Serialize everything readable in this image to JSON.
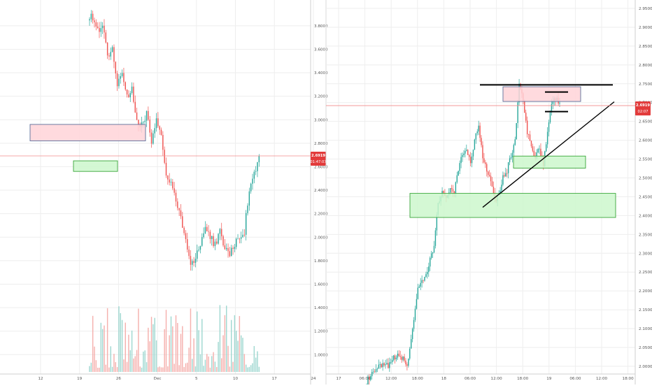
{
  "colors": {
    "up": "#26a69a",
    "down": "#ef5350",
    "volume_up": "#8fd1c9",
    "volume_down": "#f3a3a0",
    "grid": "#eeeeee",
    "axis_text": "#555555",
    "price_line": "#f28b8b",
    "price_tag": "#e23b3b",
    "resistance_fill": "#ffd4d8",
    "resistance_stroke": "#5b6e9a",
    "support_fill": "#cdf7cd",
    "support_stroke": "#3aa63a",
    "trendline": "#000000"
  },
  "chart_data": [
    {
      "type": "candlestick",
      "panel": "left",
      "title": "",
      "xlabel": "",
      "ylabel": "",
      "ylim": [
        0.96,
        3.93
      ],
      "y_ticks": [
        "1.0000",
        "1.2000",
        "1.4000",
        "1.6000",
        "1.8000",
        "2.0000",
        "2.2000",
        "2.4000",
        "2.6000",
        "2.8000",
        "3.0000",
        "3.2000",
        "3.4000",
        "3.6000",
        "3.8000"
      ],
      "x_ticks": [
        "12",
        "19",
        "26",
        "Dec",
        "5",
        "10",
        "17",
        "24"
      ],
      "grid": true,
      "volume_panel": true,
      "last_price": "2.6919",
      "countdown": "01:47:07",
      "anchors": [
        [
          0,
          3.89
        ],
        [
          3,
          3.85
        ],
        [
          6,
          3.72
        ],
        [
          8,
          3.82
        ],
        [
          11,
          3.55
        ],
        [
          14,
          3.62
        ],
        [
          17,
          3.3
        ],
        [
          20,
          3.42
        ],
        [
          23,
          3.18
        ],
        [
          26,
          3.25
        ],
        [
          29,
          3.0
        ],
        [
          32,
          2.95
        ],
        [
          35,
          3.05
        ],
        [
          38,
          2.83
        ],
        [
          41,
          3.0
        ],
        [
          44,
          2.9
        ],
        [
          47,
          2.5
        ],
        [
          50,
          2.45
        ],
        [
          53,
          2.3
        ],
        [
          56,
          2.18
        ],
        [
          59,
          1.95
        ],
        [
          62,
          1.78
        ],
        [
          65,
          1.82
        ],
        [
          68,
          1.95
        ],
        [
          71,
          2.08
        ],
        [
          74,
          2.0
        ],
        [
          77,
          1.93
        ],
        [
          80,
          2.05
        ],
        [
          83,
          1.9
        ],
        [
          86,
          1.85
        ],
        [
          89,
          1.95
        ],
        [
          92,
          2.0
        ],
        [
          95,
          2.05
        ],
        [
          98,
          2.42
        ],
        [
          101,
          2.55
        ],
        [
          104,
          2.69
        ]
      ],
      "zones": [
        {
          "kind": "resistance",
          "x0": 43,
          "x1": 208,
          "y_low": 2.82,
          "y_high": 2.96
        },
        {
          "kind": "support",
          "x0": 105,
          "x1": 168,
          "y_low": 2.56,
          "y_high": 2.65
        }
      ],
      "lines": []
    },
    {
      "type": "candlestick",
      "panel": "right",
      "title": "",
      "xlabel": "",
      "ylabel": "",
      "ylim": [
        1.985,
        2.963
      ],
      "y_ticks": [
        "2.0000",
        "2.0500",
        "2.1000",
        "2.1500",
        "2.2000",
        "2.2500",
        "2.3000",
        "2.3500",
        "2.4000",
        "2.4500",
        "2.5000",
        "2.5500",
        "2.6000",
        "2.6500",
        "2.7000",
        "2.7500",
        "2.8000",
        "2.8500",
        "2.9000",
        "2.9500"
      ],
      "x_ticks": [
        "17",
        "06:00",
        "12:00",
        "18:00",
        "18",
        "06:00",
        "12:00",
        "18:00",
        "19",
        "06:00",
        "12:00",
        "18:00"
      ],
      "grid": true,
      "volume_panel": false,
      "last_price": "2.6919",
      "countdown": "02:07",
      "anchors": [
        [
          0,
          1.96
        ],
        [
          5,
          1.98
        ],
        [
          10,
          2.0
        ],
        [
          15,
          2.0
        ],
        [
          20,
          2.02
        ],
        [
          25,
          2.03
        ],
        [
          30,
          2.0
        ],
        [
          34,
          2.1
        ],
        [
          38,
          2.2
        ],
        [
          41,
          2.22
        ],
        [
          44,
          2.24
        ],
        [
          47,
          2.28
        ],
        [
          50,
          2.32
        ],
        [
          53,
          2.44
        ],
        [
          56,
          2.46
        ],
        [
          59,
          2.44
        ],
        [
          62,
          2.48
        ],
        [
          65,
          2.46
        ],
        [
          68,
          2.52
        ],
        [
          71,
          2.56
        ],
        [
          74,
          2.58
        ],
        [
          77,
          2.54
        ],
        [
          80,
          2.6
        ],
        [
          83,
          2.64
        ],
        [
          86,
          2.56
        ],
        [
          89,
          2.52
        ],
        [
          92,
          2.5
        ],
        [
          95,
          2.44
        ],
        [
          98,
          2.46
        ],
        [
          101,
          2.5
        ],
        [
          104,
          2.52
        ],
        [
          107,
          2.56
        ],
        [
          110,
          2.6
        ],
        [
          113,
          2.75
        ],
        [
          116,
          2.7
        ],
        [
          119,
          2.62
        ],
        [
          122,
          2.58
        ],
        [
          125,
          2.56
        ],
        [
          128,
          2.58
        ],
        [
          131,
          2.54
        ],
        [
          134,
          2.62
        ],
        [
          137,
          2.69
        ],
        [
          140,
          2.71
        ],
        [
          143,
          2.7
        ]
      ],
      "zones": [
        {
          "kind": "resistance",
          "x0": 719,
          "x1": 830,
          "y_low": 2.703,
          "y_high": 2.742
        },
        {
          "kind": "support",
          "x0": 734,
          "x1": 837,
          "y_low": 2.526,
          "y_high": 2.558
        },
        {
          "kind": "support",
          "x0": 586,
          "x1": 880,
          "y_low": 2.395,
          "y_high": 2.459
        }
      ],
      "lines": [
        {
          "x0": 686,
          "y0": 2.747,
          "x1": 876,
          "y1": 2.747,
          "width": 2
        },
        {
          "x0": 779,
          "y0": 2.728,
          "x1": 812,
          "y1": 2.728,
          "width": 2
        },
        {
          "x0": 779,
          "y0": 2.676,
          "x1": 812,
          "y1": 2.676,
          "width": 2
        },
        {
          "x0": 690,
          "y0": 2.422,
          "x1": 878,
          "y1": 2.702,
          "width": 1.4
        }
      ]
    }
  ]
}
